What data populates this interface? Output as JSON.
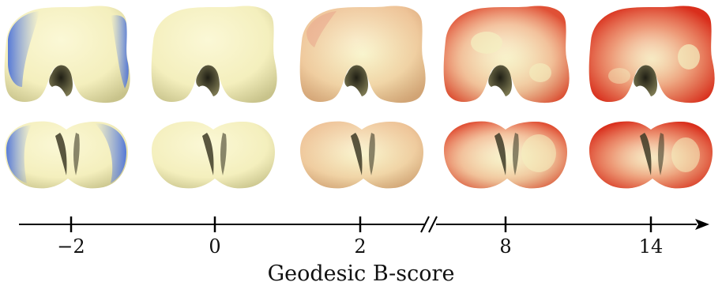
{
  "figure": {
    "axis_title": "Geodesic B-score",
    "ticks": [
      {
        "value": "−2"
      },
      {
        "value": "0"
      },
      {
        "value": "2"
      },
      {
        "value": "8"
      },
      {
        "value": "14"
      }
    ],
    "axis_break": "//",
    "columns": [
      {
        "score": -2,
        "top_view": "femur-anterior",
        "bottom_view": "femur-distal",
        "coloring": "blue-edges"
      },
      {
        "score": 0,
        "top_view": "femur-anterior",
        "bottom_view": "femur-distal",
        "coloring": "neutral"
      },
      {
        "score": 2,
        "top_view": "femur-anterior",
        "bottom_view": "femur-distal",
        "coloring": "light-red"
      },
      {
        "score": 8,
        "top_view": "femur-anterior",
        "bottom_view": "femur-distal",
        "coloring": "red"
      },
      {
        "score": 14,
        "top_view": "femur-anterior",
        "bottom_view": "femur-distal",
        "coloring": "strong-red"
      }
    ],
    "colors": {
      "bone_base": "#f7f3c4",
      "bone_shadow": "#c9c48a",
      "notch_dark": "#2e2c1e",
      "blue": "#6f8fe0",
      "red": "#e0472e",
      "axis": "#000000"
    }
  }
}
